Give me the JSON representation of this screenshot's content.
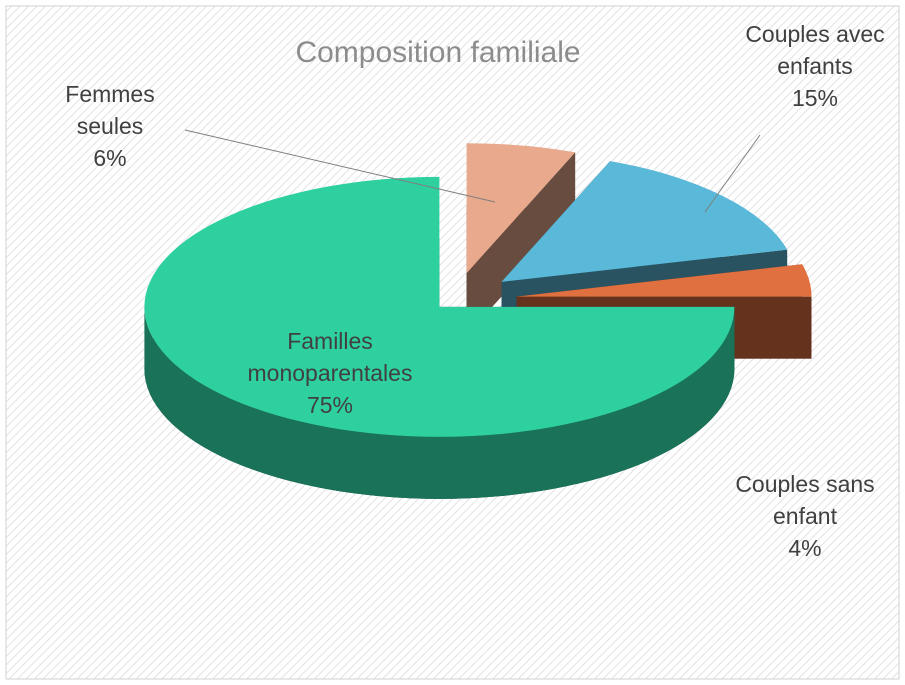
{
  "chart_data": {
    "type": "pie",
    "title": "Composition familiale",
    "categories": [
      "Femmes seules",
      "Couples avec enfants",
      "Couples sans enfant",
      "Familles monoparentales"
    ],
    "values": [
      6,
      15,
      4,
      75
    ],
    "value_labels": [
      "6%",
      "15%",
      "4%",
      "75%"
    ],
    "colors": [
      "#e8a98c",
      "#5ab8d8",
      "#e07040",
      "#2fd0a0"
    ]
  }
}
